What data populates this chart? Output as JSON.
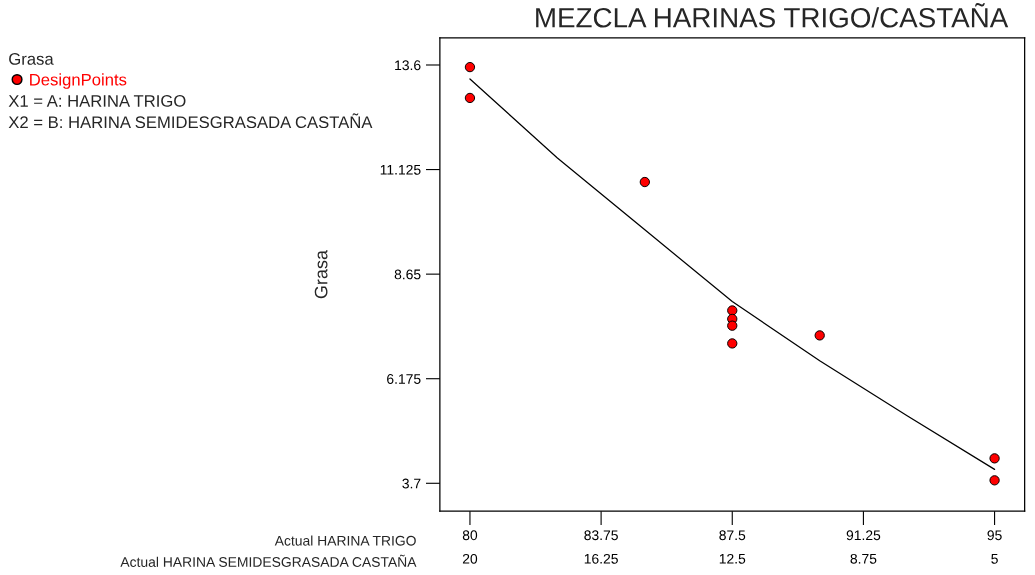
{
  "chart_data": {
    "type": "scatter",
    "title": "MEZCLA HARINAS TRIGO/CASTAÑA",
    "xlabel": "Actual HARINA TRIGO",
    "ylabel": "Grasa",
    "x2label": "Actual HARINA SEMIDESGRASADA CASTAÑA",
    "xlim": [
      79.14,
      95.86
    ],
    "xticks": [
      80,
      83.75,
      87.5,
      91.25,
      95
    ],
    "x2lim": [
      20.86,
      4.14
    ],
    "x2ticks": [
      20,
      16.25,
      12.5,
      8.75,
      5
    ],
    "ylim": [
      3.04,
      14.24
    ],
    "yticks": [
      3.7,
      6.175,
      8.65,
      11.125,
      13.6
    ],
    "grid": false,
    "legend": "top left",
    "annotations": [
      "Grasa",
      "X1 = A: HARINA TRIGO",
      "X2 = B: HARINA SEMIDESGRASADA CASTAÑA"
    ],
    "series": [
      {
        "name": "DesignPoints",
        "marker": "circle",
        "color": "#ff0000",
        "x": [
          80,
          80,
          85,
          87.5,
          87.5,
          87.5,
          87.5,
          90,
          95,
          95
        ],
        "values": [
          13.55,
          12.82,
          10.83,
          7.79,
          7.59,
          7.43,
          7.01,
          7.2,
          4.29,
          3.77
        ]
      },
      {
        "type": "line",
        "marker": "none",
        "line_style": "solid",
        "color": "#000000",
        "x": [
          80,
          82.5,
          85,
          87.5,
          90,
          92.5,
          95
        ],
        "values": [
          13.27,
          11.4,
          9.7,
          8.0,
          6.6,
          5.3,
          4.03
        ]
      }
    ]
  }
}
